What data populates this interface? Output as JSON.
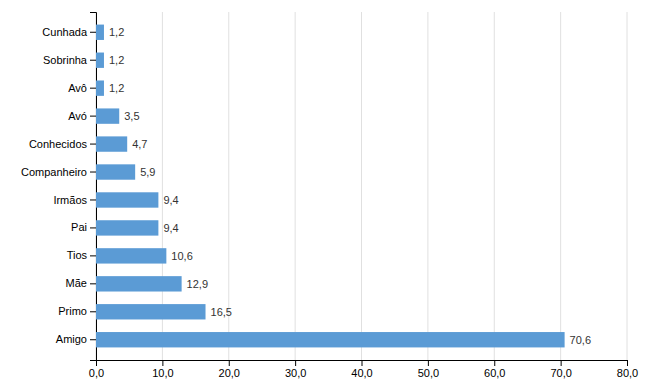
{
  "chart_data": {
    "type": "bar",
    "orientation": "horizontal",
    "categories": [
      "Cunhada",
      "Sobrinha",
      "Avô",
      "Avó",
      "Conhecidos",
      "Companheiro",
      "Irmãos",
      "Pai",
      "Tios",
      "Mãe",
      "Primo",
      "Amigo"
    ],
    "values": [
      1.2,
      1.2,
      1.2,
      3.5,
      4.7,
      5.9,
      9.4,
      9.4,
      10.6,
      12.9,
      16.5,
      70.6
    ],
    "value_labels": [
      "1,2",
      "1,2",
      "1,2",
      "3,5",
      "4,7",
      "5,9",
      "9,4",
      "9,4",
      "10,6",
      "12,9",
      "16,5",
      "70,6"
    ],
    "data_labels": true,
    "color": "#5B9BD5",
    "xlim": [
      0,
      80
    ],
    "xticks": [
      {
        "value": 0,
        "label": "0,0"
      },
      {
        "value": 10,
        "label": "10,0"
      },
      {
        "value": 20,
        "label": "20,0"
      },
      {
        "value": 30,
        "label": "30,0"
      },
      {
        "value": 40,
        "label": "40,0"
      },
      {
        "value": 50,
        "label": "50,0"
      },
      {
        "value": 60,
        "label": "60,0"
      },
      {
        "value": 70,
        "label": "70,0"
      },
      {
        "value": 80,
        "label": "80,0"
      }
    ],
    "grid": true
  }
}
